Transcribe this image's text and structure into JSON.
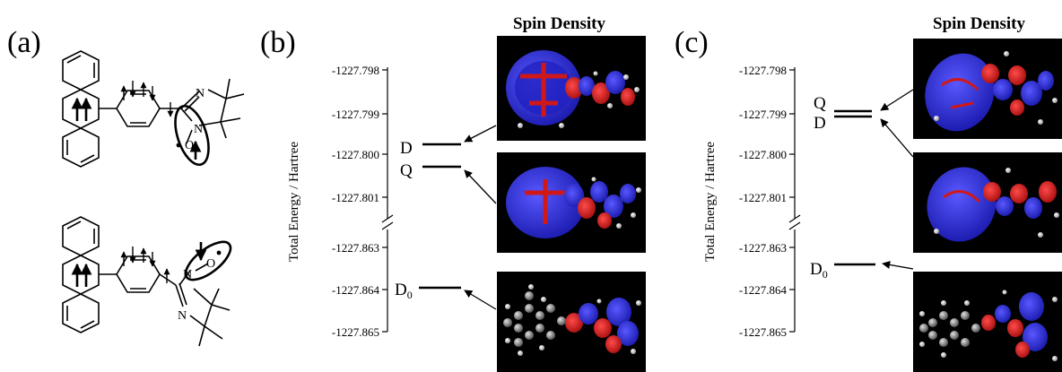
{
  "panels": {
    "a": {
      "label": "(a)"
    },
    "b": {
      "label": "(b)",
      "spin_title": "Spin Density",
      "yaxis": "Total Energy / Hartree",
      "ticks": [
        "-1227.798",
        "-1227.799",
        "-1227.800",
        "-1227.801",
        "-1227.863",
        "-1227.864",
        "-1227.865"
      ],
      "levels": {
        "D": "D",
        "Q": "Q",
        "D0_main": "D",
        "D0_sub": "0"
      }
    },
    "c": {
      "label": "(c)",
      "spin_title": "Spin Density",
      "yaxis": "Total Energy / Hartree",
      "ticks": [
        "-1227.798",
        "-1227.799",
        "-1227.800",
        "-1227.801",
        "-1227.863",
        "-1227.864",
        "-1227.865"
      ],
      "levels": {
        "Q": "Q",
        "D": "D",
        "D0_main": "D",
        "D0_sub": "0"
      }
    }
  },
  "structure_atoms": {
    "N": "N",
    "O": "O"
  },
  "colors": {
    "spin_positive": "#2a2ad8",
    "spin_negative": "#d01818",
    "image_bg": "#000000",
    "carbon": "#8c8c8c",
    "hydrogen": "#e6e6e6"
  }
}
